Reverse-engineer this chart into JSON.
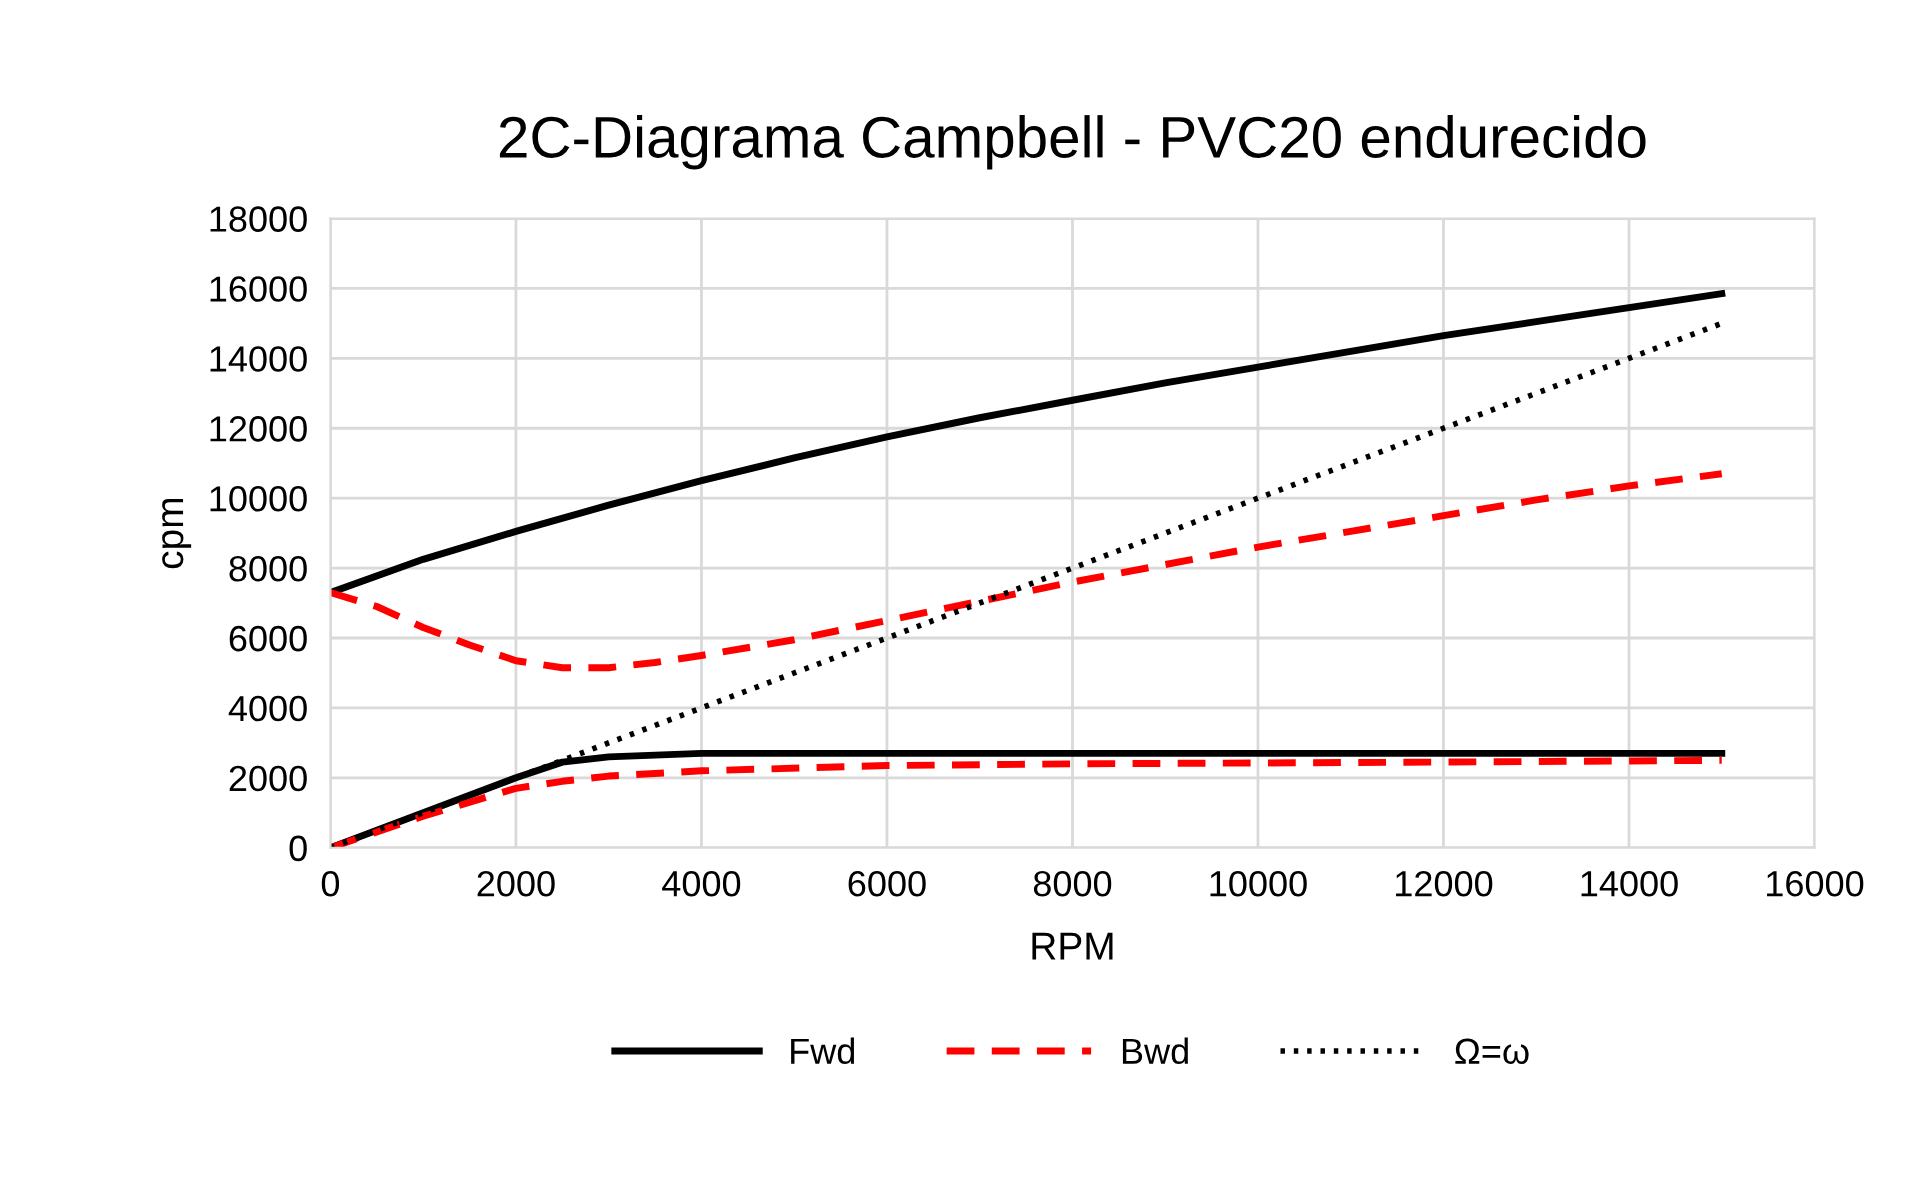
{
  "chart_data": {
    "type": "line",
    "title": "2C-Diagrama Campbell - PVC20 endurecido",
    "xlabel": "RPM",
    "ylabel": "cpm",
    "xlim": [
      0,
      16000
    ],
    "xticks": [
      0,
      2000,
      4000,
      6000,
      8000,
      10000,
      12000,
      14000,
      16000
    ],
    "ylim": [
      0,
      18000
    ],
    "yticks": [
      0,
      2000,
      4000,
      6000,
      8000,
      10000,
      12000,
      14000,
      16000,
      18000
    ],
    "grid": true,
    "legend": "bottom",
    "marker": "none",
    "series": [
      {
        "name": "Fwd",
        "color": "#000000",
        "line_style": "solid",
        "x": [
          0,
          1000,
          2000,
          3000,
          4000,
          5000,
          6000,
          7000,
          8000,
          9000,
          10000,
          11000,
          12000,
          13000,
          14000,
          15000
        ],
        "values": [
          7300,
          8250,
          9050,
          9800,
          10500,
          11150,
          11750,
          12300,
          12800,
          13300,
          13750,
          14200,
          14650,
          15050,
          15450,
          15850
        ]
      },
      {
        "color": "#000000",
        "line_style": "solid",
        "x": [
          0,
          1000,
          2000,
          2500,
          3000,
          4000,
          6000,
          15000
        ],
        "values": [
          0,
          1000,
          2000,
          2450,
          2600,
          2700,
          2700,
          2700
        ]
      },
      {
        "name": "Bwd",
        "color": "#ff0000",
        "line_style": "dashed",
        "x": [
          0,
          500,
          1000,
          1500,
          2000,
          2500,
          3000,
          3500,
          4000,
          5000,
          6000,
          7000,
          8000,
          9000,
          10000,
          11000,
          12000,
          13000,
          14000,
          15000
        ],
        "values": [
          7300,
          6900,
          6300,
          5800,
          5350,
          5150,
          5150,
          5300,
          5500,
          5950,
          6500,
          7050,
          7600,
          8100,
          8600,
          9050,
          9500,
          9950,
          10350,
          10700
        ]
      },
      {
        "color": "#ff0000",
        "line_style": "dashed",
        "x": [
          0,
          1000,
          2000,
          2500,
          3000,
          4000,
          6000,
          8000,
          12000,
          15000
        ],
        "values": [
          0,
          900,
          1700,
          1900,
          2050,
          2200,
          2350,
          2400,
          2450,
          2500
        ]
      },
      {
        "name": "Ω=ω",
        "color": "#000000",
        "line_style": "dotted",
        "x": [
          0,
          15000
        ],
        "values": [
          0,
          15000
        ]
      }
    ]
  }
}
